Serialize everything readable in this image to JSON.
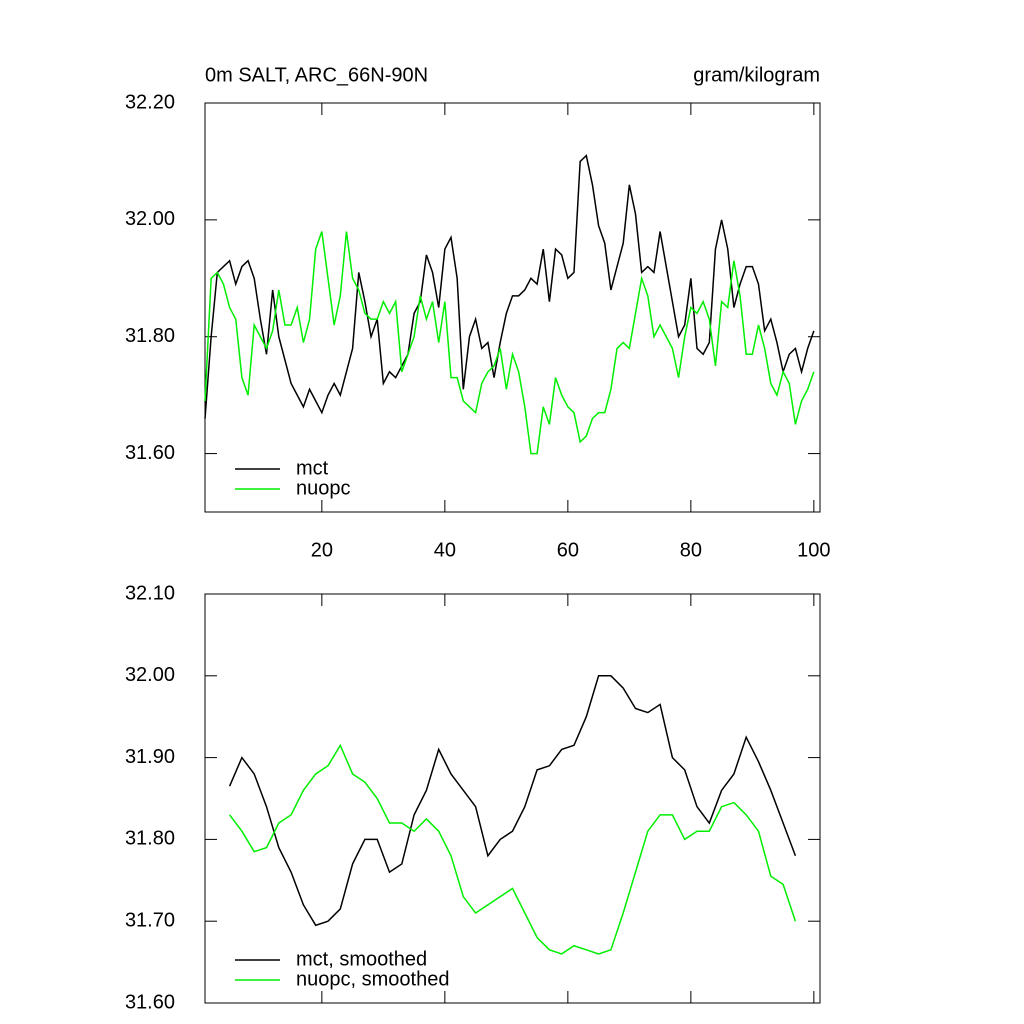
{
  "chart_data": [
    {
      "type": "line",
      "title": "0m SALT, ARC_66N-90N",
      "units": "gram/kilogram",
      "x": [
        1,
        2,
        3,
        4,
        5,
        6,
        7,
        8,
        9,
        10,
        11,
        12,
        13,
        14,
        15,
        16,
        17,
        18,
        19,
        20,
        21,
        22,
        23,
        24,
        25,
        26,
        27,
        28,
        29,
        30,
        31,
        32,
        33,
        34,
        35,
        36,
        37,
        38,
        39,
        40,
        41,
        42,
        43,
        44,
        45,
        46,
        47,
        48,
        49,
        50,
        51,
        52,
        53,
        54,
        55,
        56,
        57,
        58,
        59,
        60,
        61,
        62,
        63,
        64,
        65,
        66,
        67,
        68,
        69,
        70,
        71,
        72,
        73,
        74,
        75,
        76,
        77,
        78,
        79,
        80,
        81,
        82,
        83,
        84,
        85,
        86,
        87,
        88,
        89,
        90,
        91,
        92,
        93,
        94,
        95,
        96,
        97,
        98,
        99,
        100
      ],
      "series": [
        {
          "name": "mct",
          "color": "#000000",
          "values": [
            31.66,
            31.8,
            31.91,
            31.92,
            31.93,
            31.89,
            31.92,
            31.93,
            31.9,
            31.83,
            31.77,
            31.88,
            31.8,
            31.76,
            31.72,
            31.7,
            31.68,
            31.71,
            31.69,
            31.67,
            31.7,
            31.72,
            31.7,
            31.74,
            31.78,
            31.91,
            31.86,
            31.8,
            31.83,
            31.72,
            31.74,
            31.73,
            31.75,
            31.77,
            31.84,
            31.86,
            31.94,
            31.91,
            31.85,
            31.95,
            31.97,
            31.9,
            31.71,
            31.8,
            31.83,
            31.78,
            31.79,
            31.73,
            31.79,
            31.84,
            31.87,
            31.87,
            31.88,
            31.9,
            31.89,
            31.95,
            31.86,
            31.95,
            31.94,
            31.9,
            31.91,
            32.1,
            32.11,
            32.06,
            31.99,
            31.96,
            31.88,
            31.92,
            31.96,
            32.06,
            32.01,
            31.91,
            31.92,
            31.91,
            31.98,
            31.92,
            31.86,
            31.8,
            31.82,
            31.9,
            31.78,
            31.77,
            31.79,
            31.95,
            32.0,
            31.95,
            31.85,
            31.89,
            31.92,
            31.92,
            31.89,
            31.81,
            31.83,
            31.79,
            31.74,
            31.77,
            31.78,
            31.74,
            31.78,
            31.81
          ]
        },
        {
          "name": "nuopc",
          "color": "#00ee00",
          "values": [
            31.69,
            31.9,
            31.91,
            31.89,
            31.85,
            31.83,
            31.73,
            31.7,
            31.82,
            31.8,
            31.78,
            31.81,
            31.88,
            31.82,
            31.82,
            31.85,
            31.79,
            31.83,
            31.95,
            31.98,
            31.9,
            31.82,
            31.87,
            31.98,
            31.9,
            31.88,
            31.84,
            31.83,
            31.83,
            31.86,
            31.84,
            31.86,
            31.74,
            31.77,
            31.8,
            31.87,
            31.83,
            31.86,
            31.79,
            31.86,
            31.73,
            31.73,
            31.69,
            31.68,
            31.67,
            31.72,
            31.74,
            31.75,
            31.78,
            31.71,
            31.77,
            31.74,
            31.68,
            31.6,
            31.6,
            31.68,
            31.65,
            31.73,
            31.7,
            31.68,
            31.67,
            31.62,
            31.63,
            31.66,
            31.67,
            31.67,
            31.71,
            31.78,
            31.79,
            31.78,
            31.84,
            31.9,
            31.87,
            31.8,
            31.82,
            31.8,
            31.78,
            31.73,
            31.8,
            31.85,
            31.84,
            31.86,
            31.83,
            31.75,
            31.86,
            31.85,
            31.93,
            31.87,
            31.77,
            31.77,
            31.82,
            31.78,
            31.72,
            31.7,
            31.74,
            31.72,
            31.65,
            31.69,
            31.71,
            31.74
          ]
        }
      ],
      "xlim": [
        1,
        101
      ],
      "xticks": [
        20,
        40,
        60,
        80,
        100
      ],
      "xtick_labels": true,
      "ylim": [
        31.5,
        32.2
      ],
      "yticks": [
        {
          "value": 31.6,
          "label": "31.60"
        },
        {
          "value": 31.8,
          "label": "31.80"
        },
        {
          "value": 32.0,
          "label": "32.00"
        },
        {
          "value": 32.2,
          "label": "32.20"
        }
      ],
      "legend": "lower left"
    },
    {
      "type": "line",
      "x": [
        5,
        7,
        9,
        11,
        13,
        15,
        17,
        19,
        21,
        23,
        25,
        27,
        29,
        31,
        33,
        35,
        37,
        39,
        41,
        43,
        45,
        47,
        49,
        51,
        53,
        55,
        57,
        59,
        61,
        63,
        65,
        67,
        69,
        71,
        73,
        75,
        77,
        79,
        81,
        83,
        85,
        87,
        89,
        91,
        93,
        95,
        97
      ],
      "series": [
        {
          "name": "mct, smoothed",
          "color": "#000000",
          "values": [
            31.865,
            31.9,
            31.88,
            31.84,
            31.79,
            31.76,
            31.72,
            31.695,
            31.7,
            31.715,
            31.77,
            31.8,
            31.8,
            31.76,
            31.77,
            31.83,
            31.86,
            31.91,
            31.88,
            31.86,
            31.84,
            31.78,
            31.8,
            31.81,
            31.84,
            31.885,
            31.89,
            31.91,
            31.915,
            31.95,
            32.0,
            32.0,
            31.985,
            31.96,
            31.955,
            31.965,
            31.9,
            31.885,
            31.84,
            31.82,
            31.86,
            31.88,
            31.925,
            31.895,
            31.86,
            31.82,
            31.78
          ]
        },
        {
          "name": "nuopc, smoothed",
          "color": "#00ee00",
          "values": [
            31.83,
            31.81,
            31.785,
            31.79,
            31.82,
            31.83,
            31.86,
            31.88,
            31.89,
            31.915,
            31.88,
            31.87,
            31.85,
            31.82,
            31.82,
            31.81,
            31.825,
            31.81,
            31.78,
            31.73,
            31.71,
            31.72,
            31.73,
            31.74,
            31.71,
            31.68,
            31.665,
            31.66,
            31.67,
            31.665,
            31.66,
            31.665,
            31.71,
            31.76,
            31.81,
            31.83,
            31.83,
            31.8,
            31.81,
            31.81,
            31.84,
            31.845,
            31.83,
            31.81,
            31.755,
            31.745,
            31.7
          ]
        }
      ],
      "xlim": [
        1,
        101
      ],
      "xticks": [
        20,
        40,
        60,
        80,
        100
      ],
      "xtick_labels": false,
      "ylim": [
        31.6,
        32.1
      ],
      "yticks": [
        {
          "value": 31.6,
          "label": "31.60"
        },
        {
          "value": 31.7,
          "label": "31.70"
        },
        {
          "value": 31.8,
          "label": "31.80"
        },
        {
          "value": 31.9,
          "label": "31.90"
        },
        {
          "value": 32.0,
          "label": "32.00"
        },
        {
          "value": 32.1,
          "label": "32.10"
        }
      ],
      "legend": "lower left"
    }
  ]
}
